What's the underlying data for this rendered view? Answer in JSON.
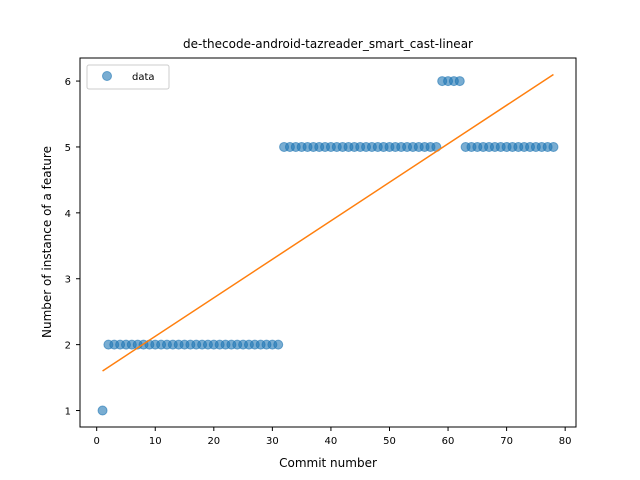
{
  "chart_data": {
    "type": "scatter",
    "title": "de-thecode-android-tazreader_smart_cast-linear",
    "xlabel": "Commit number",
    "ylabel": "Number of instance of a feature",
    "xlim": [
      -2.85,
      81.85
    ],
    "ylim": [
      0.75,
      6.35
    ],
    "xticks": [
      0,
      10,
      20,
      30,
      40,
      50,
      60,
      70,
      80
    ],
    "yticks": [
      1,
      2,
      3,
      4,
      5,
      6
    ],
    "grid": false,
    "legend_position": "upper left",
    "series": [
      {
        "name": "data",
        "kind": "scatter",
        "color": "#1f77b4",
        "x": [
          1,
          2,
          3,
          4,
          5,
          6,
          7,
          8,
          9,
          10,
          11,
          12,
          13,
          14,
          15,
          16,
          17,
          18,
          19,
          20,
          21,
          22,
          23,
          24,
          25,
          26,
          27,
          28,
          29,
          30,
          31,
          32,
          33,
          34,
          35,
          36,
          37,
          38,
          39,
          40,
          41,
          42,
          43,
          44,
          45,
          46,
          47,
          48,
          49,
          50,
          51,
          52,
          53,
          54,
          55,
          56,
          57,
          58,
          59,
          60,
          61,
          62,
          63,
          64,
          65,
          66,
          67,
          68,
          69,
          70,
          71,
          72,
          73,
          74,
          75,
          76,
          77,
          78
        ],
        "y": [
          1,
          2,
          2,
          2,
          2,
          2,
          2,
          2,
          2,
          2,
          2,
          2,
          2,
          2,
          2,
          2,
          2,
          2,
          2,
          2,
          2,
          2,
          2,
          2,
          2,
          2,
          2,
          2,
          2,
          2,
          2,
          5,
          5,
          5,
          5,
          5,
          5,
          5,
          5,
          5,
          5,
          5,
          5,
          5,
          5,
          5,
          5,
          5,
          5,
          5,
          5,
          5,
          5,
          5,
          5,
          5,
          5,
          5,
          6,
          6,
          6,
          6,
          5,
          5,
          5,
          5,
          5,
          5,
          5,
          5,
          5,
          5,
          5,
          5,
          5,
          5,
          5,
          5
        ]
      },
      {
        "name": "",
        "kind": "line",
        "color": "#ff7f0e",
        "x": [
          1,
          78
        ],
        "y": [
          1.6,
          6.1
        ]
      }
    ]
  }
}
